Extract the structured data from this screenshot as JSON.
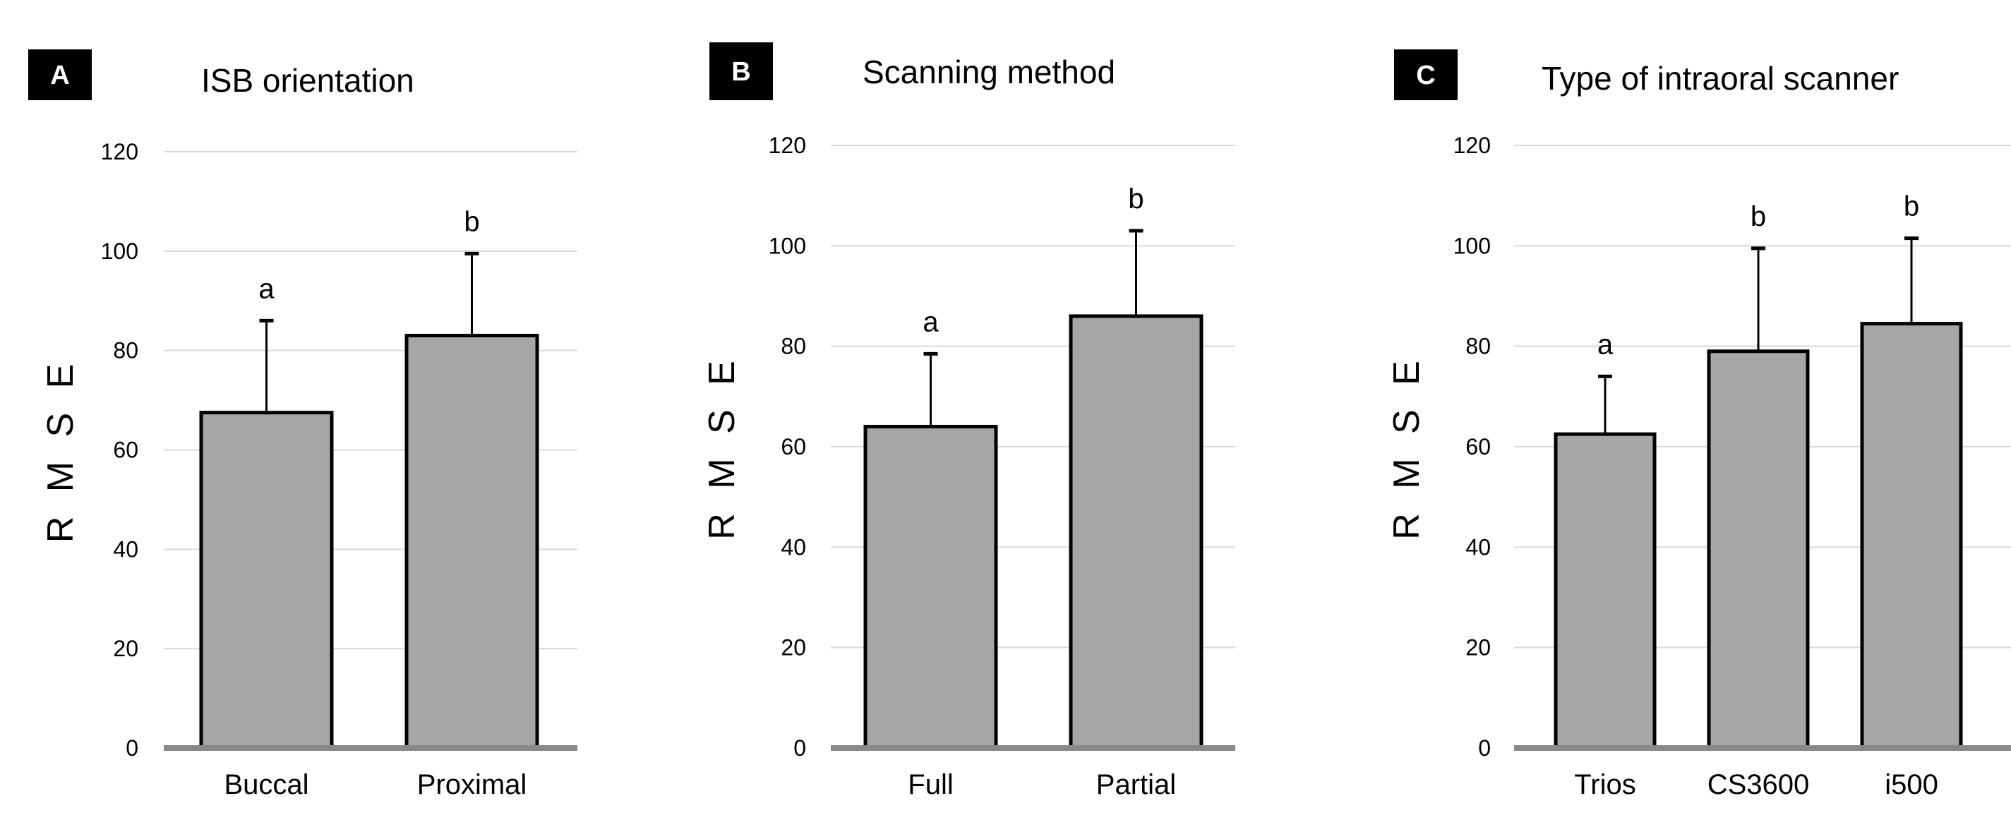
{
  "colors": {
    "bar_fill": "#a6a6a6",
    "bar_stroke": "#000000",
    "grid": "#d9d9d9",
    "axis": "#898989",
    "label_box": "#000000"
  },
  "chart_data": [
    {
      "type": "bar",
      "panel_label": "A",
      "title": "ISB orientation",
      "ylabel": "R M S E",
      "xlabel": "",
      "ylim": [
        0,
        120
      ],
      "yticks": [
        0,
        20,
        40,
        60,
        80,
        100,
        120
      ],
      "grid": true,
      "categories": [
        "Buccal",
        "Proximal"
      ],
      "values": [
        67.5,
        83
      ],
      "error_upper": [
        18.5,
        16.5
      ],
      "significance": [
        "a",
        "b"
      ]
    },
    {
      "type": "bar",
      "panel_label": "B",
      "title": "Scanning  method",
      "ylabel": "R M S E",
      "xlabel": "",
      "ylim": [
        0,
        120
      ],
      "yticks": [
        0,
        20,
        40,
        60,
        80,
        100,
        120
      ],
      "grid": true,
      "categories": [
        "Full",
        "Partial"
      ],
      "values": [
        64,
        86
      ],
      "error_upper": [
        14.5,
        17
      ],
      "significance": [
        "a",
        "b"
      ]
    },
    {
      "type": "bar",
      "panel_label": "C",
      "title": "Type of intraoral scanner",
      "ylabel": "R M S E",
      "xlabel": "",
      "ylim": [
        0,
        120
      ],
      "yticks": [
        0,
        20,
        40,
        60,
        80,
        100,
        120
      ],
      "grid": true,
      "categories": [
        "Trios",
        "CS3600",
        "i500"
      ],
      "values": [
        62.5,
        79,
        84.5
      ],
      "error_upper": [
        11.5,
        20.5,
        17
      ],
      "significance": [
        "a",
        "b",
        "b"
      ]
    }
  ]
}
